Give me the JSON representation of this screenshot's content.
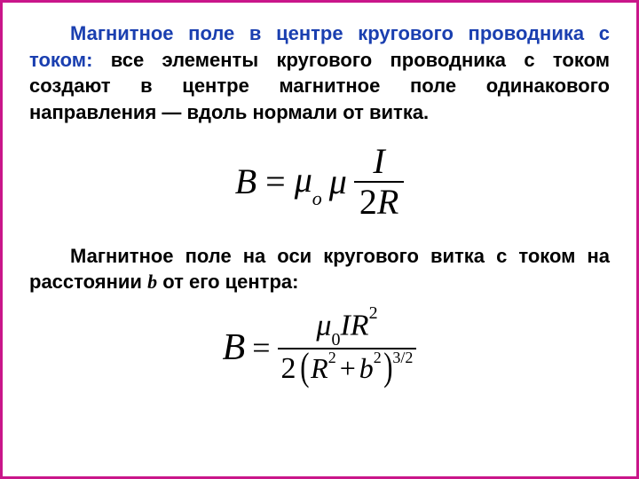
{
  "colors": {
    "frame_border": "#c9168a",
    "lead_text": "#1a3fb0",
    "body_text": "#000000",
    "background": "#ffffff"
  },
  "typography": {
    "body_font": "Arial",
    "body_size_pt": 17,
    "body_weight": "bold",
    "formula_font": "Times New Roman",
    "formula_style": "italic"
  },
  "para1": {
    "lead": "Магнитное поле в центре кругового проводника с током:",
    "rest": " все элементы кругового проводника с током создают в центре магнитное поле одинакового направления — вдоль нормали от витка."
  },
  "formula1": {
    "lhs": "B",
    "eq": "=",
    "mu_o": "μ",
    "mu_o_sub": "o",
    "mu": "μ",
    "num": "I",
    "den_num": "2",
    "den_var": "R"
  },
  "para2": {
    "t1": "Магнитное поле на оси кругового витка с током на расстоянии ",
    "b": "b",
    "t2": " от его центра:"
  },
  "formula2": {
    "lhs": "B",
    "eq": "=",
    "num_mu": "μ",
    "num_mu_sub": "0",
    "num_I": "I",
    "num_R": "R",
    "num_R_exp": "2",
    "den_two": "2",
    "den_R": "R",
    "den_R_exp": "2",
    "den_plus": "+",
    "den_b": "b",
    "den_b_exp": "2",
    "outer_exp": "3/2"
  }
}
